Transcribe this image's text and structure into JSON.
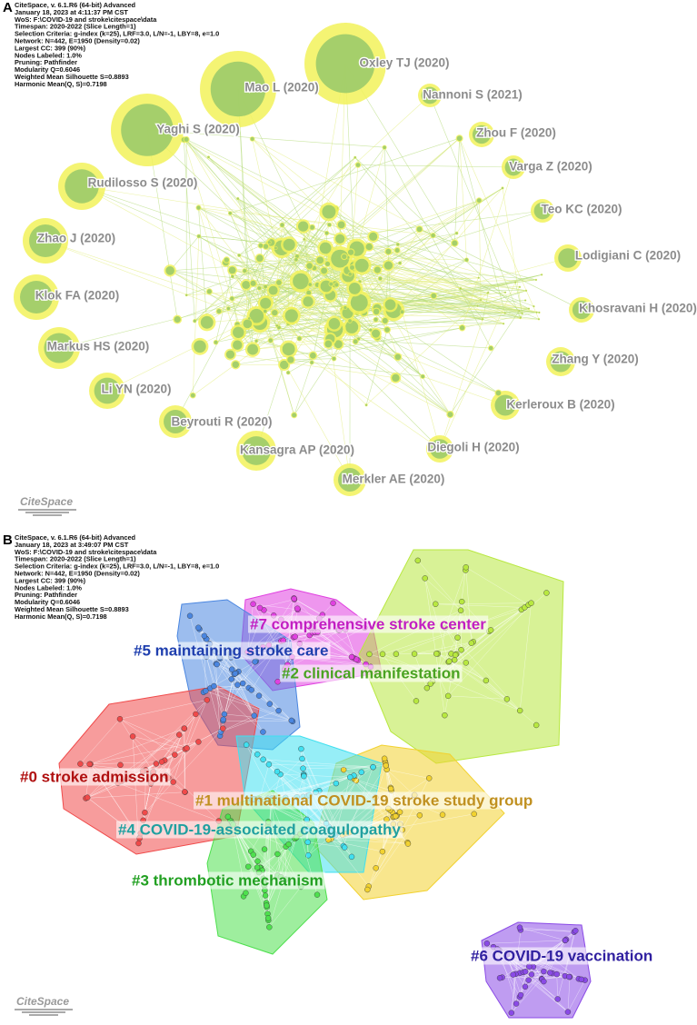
{
  "panel_a": {
    "label": "A",
    "header": [
      "CiteSpace, v. 6.1.R6 (64-bit) Advanced",
      "January 18, 2023 at 4:11:37 PM CST",
      "WoS: F:\\COVID-19 and stroke\\citespace\\data",
      "Timespan: 2020-2022 (Slice Length=1)",
      "Selection Criteria: g-index (k=25), LRF=3.0, L/N=-1, LBY=8, e=1.0",
      "Network: N=442, E=1950 (Density=0.02)",
      "Largest CC: 399 (90%)",
      "Nodes Labeled: 1.0%",
      "Pruning: Pathfinder",
      "Modularity Q=0.6046",
      "Weighted Mean Silhouette S=0.8893",
      "Harmonic Mean(Q, S)=0.7198"
    ],
    "nodes": [
      {
        "label": "Oxley TJ (2020)"
      },
      {
        "label": "Mao L (2020)"
      },
      {
        "label": "Nannoni S (2021)"
      },
      {
        "label": "Yaghi S (2020)"
      },
      {
        "label": "Zhou F (2020)"
      },
      {
        "label": "Varga Z (2020)"
      },
      {
        "label": "Rudilosso S (2020)"
      },
      {
        "label": "Teo KC (2020)"
      },
      {
        "label": "Zhao J (2020)"
      },
      {
        "label": "Lodigiani C (2020)"
      },
      {
        "label": "Klok FA (2020)"
      },
      {
        "label": "Khosravani H (2020)"
      },
      {
        "label": "Markus HS (2020)"
      },
      {
        "label": "Zhang Y (2020)"
      },
      {
        "label": "Li YN (2020)"
      },
      {
        "label": "Kerleroux B (2020)"
      },
      {
        "label": "Beyrouti R (2020)"
      },
      {
        "label": "Diegoli H (2020)"
      },
      {
        "label": "Kansagra AP (2020)"
      },
      {
        "label": "Merkler AE (2020)"
      }
    ],
    "logo": "CiteSpace"
  },
  "panel_b": {
    "label": "B",
    "header": [
      "CiteSpace, v. 6.1.R6 (64-bit) Advanced",
      "January 18, 2023 at 3:49:07 PM CST",
      "WoS: F:\\COVID-19 and stroke\\citespace\\data",
      "Timespan: 2020-2022 (Slice Length=1)",
      "Selection Criteria: g-index (k=25), LRF=3.0, L/N=-1, LBY=8, e=1.0",
      "Network: N=442, E=1950 (Density=0.02)",
      "Largest CC: 399 (90%)",
      "Nodes Labeled: 1.0%",
      "Pruning: Pathfinder",
      "Modularity Q=0.6046",
      "Weighted Mean Silhouette S=0.8893",
      "Harmonic Mean(Q, S)=0.7198"
    ],
    "clusters": [
      {
        "label": "#7 comprehensive stroke center"
      },
      {
        "label": "#5 maintaining stroke care"
      },
      {
        "label": "#2 clinical manifestation"
      },
      {
        "label": "#0 stroke admission"
      },
      {
        "label": "#1 multinational COVID-19 stroke study group"
      },
      {
        "label": "#4 COVID-19-associated coagulopathy"
      },
      {
        "label": "#3 thrombotic mechanism"
      },
      {
        "label": "#6 COVID-19 vaccination"
      }
    ],
    "logo": "CiteSpace"
  }
}
